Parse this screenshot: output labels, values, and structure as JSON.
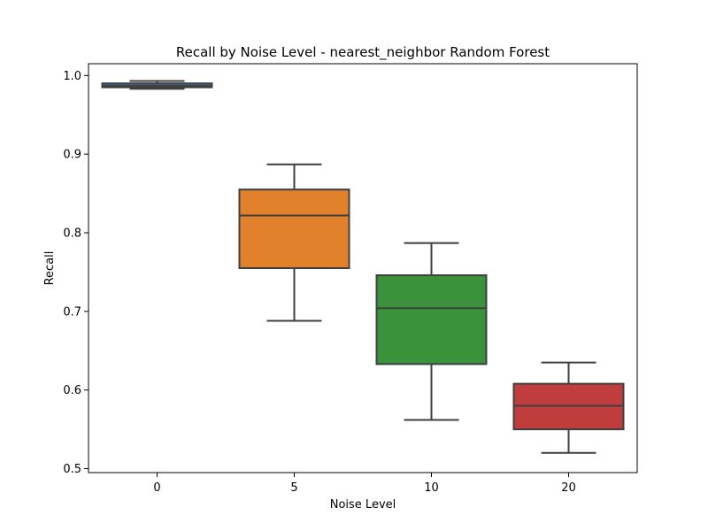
{
  "chart_data": {
    "type": "box",
    "title": "Recall by Noise Level - nearest_neighbor Random Forest",
    "xlabel": "Noise Level",
    "ylabel": "Recall",
    "categories": [
      "0",
      "5",
      "10",
      "20"
    ],
    "ylim": [
      0.495,
      1.015
    ],
    "yticks": [
      0.5,
      0.6,
      0.7,
      0.8,
      0.9,
      1.0
    ],
    "ytick_labels": [
      "0.5",
      "0.6",
      "0.7",
      "0.8",
      "0.9",
      "1.0"
    ],
    "grid": false,
    "boxes": [
      {
        "category": "0",
        "whisker_low": 0.983,
        "q1": 0.985,
        "median": 0.987,
        "q3": 0.99,
        "whisker_high": 0.993,
        "color": "#3a75af"
      },
      {
        "category": "5",
        "whisker_low": 0.688,
        "q1": 0.755,
        "median": 0.822,
        "q3": 0.855,
        "whisker_high": 0.887,
        "color": "#e1812c"
      },
      {
        "category": "10",
        "whisker_low": 0.562,
        "q1": 0.633,
        "median": 0.704,
        "q3": 0.746,
        "whisker_high": 0.787,
        "color": "#3a923a"
      },
      {
        "category": "20",
        "whisker_low": 0.52,
        "q1": 0.55,
        "median": 0.58,
        "q3": 0.608,
        "whisker_high": 0.635,
        "color": "#c03d3e"
      }
    ]
  }
}
